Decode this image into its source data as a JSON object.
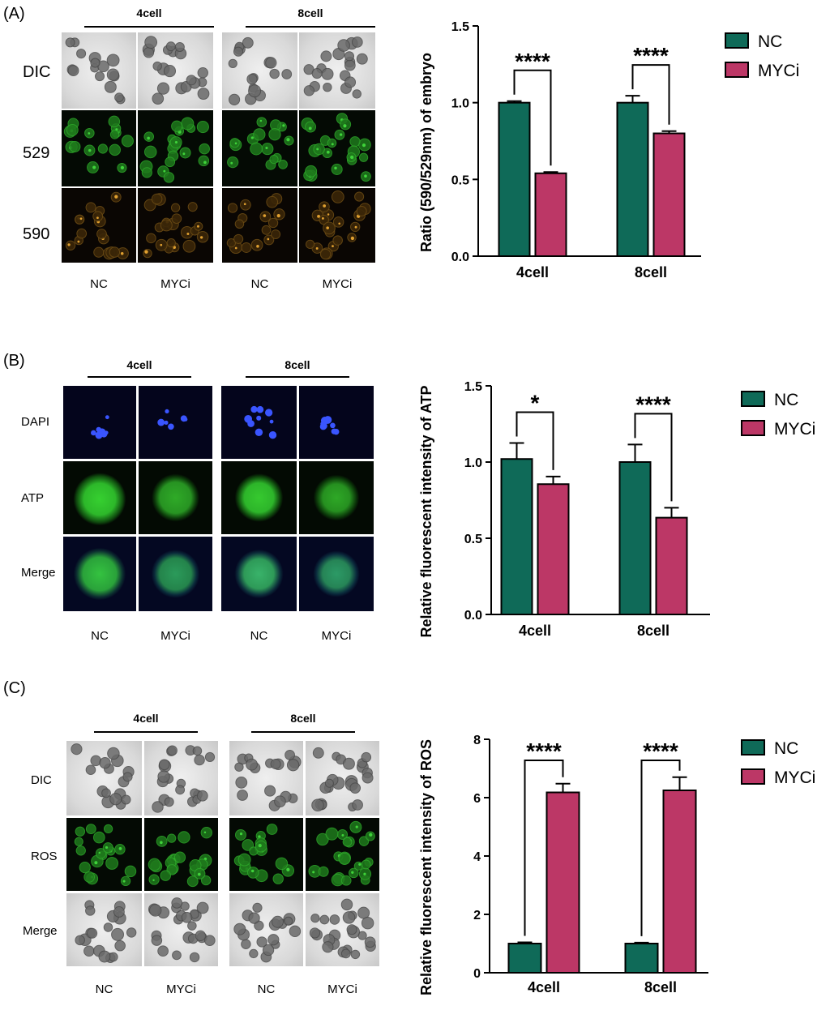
{
  "colors": {
    "nc": "#0f6a58",
    "myci": "#bc3766"
  },
  "panels": [
    {
      "label": "(A)",
      "groups": [
        "4cell",
        "8cell"
      ],
      "rows": [
        "DIC",
        "529",
        "590"
      ],
      "columns": [
        "NC",
        "MYCi",
        "NC",
        "MYCi"
      ]
    },
    {
      "label": "(B)",
      "groups": [
        "4cell",
        "8cell"
      ],
      "rows": [
        "DAPI",
        "ATP",
        "Merge"
      ],
      "columns": [
        "NC",
        "MYCi",
        "NC",
        "MYCi"
      ]
    },
    {
      "label": "(C)",
      "groups": [
        "4cell",
        "8cell"
      ],
      "rows": [
        "DIC",
        "ROS",
        "Merge"
      ],
      "columns": [
        "NC",
        "MYCi",
        "NC",
        "MYCi"
      ]
    }
  ],
  "chart_data": [
    {
      "type": "bar",
      "categories": [
        "4cell",
        "8cell"
      ],
      "series": [
        {
          "name": "NC",
          "values": [
            1.0,
            1.0
          ],
          "errors": [
            0.01,
            0.045
          ]
        },
        {
          "name": "MYCi",
          "values": [
            0.54,
            0.8
          ],
          "errors": [
            0.008,
            0.015
          ]
        }
      ],
      "ylabel": "Ratio (590/529nm) of embryo",
      "ylim": [
        0,
        1.5
      ],
      "yticks": [
        "0.0",
        "0.5",
        "1.0",
        "1.5"
      ],
      "significance": [
        "****",
        "****"
      ],
      "legend": "right"
    },
    {
      "type": "bar",
      "categories": [
        "4cell",
        "8cell"
      ],
      "series": [
        {
          "name": "NC",
          "values": [
            1.02,
            1.0
          ],
          "errors": [
            0.105,
            0.115
          ]
        },
        {
          "name": "MYCi",
          "values": [
            0.855,
            0.635
          ],
          "errors": [
            0.05,
            0.065
          ]
        }
      ],
      "ylabel": "Relative fluorescent intensity of ATP",
      "ylim": [
        0,
        1.5
      ],
      "yticks": [
        "0.0",
        "0.5",
        "1.0",
        "1.5"
      ],
      "significance": [
        "*",
        "****"
      ],
      "legend": "right"
    },
    {
      "type": "bar",
      "categories": [
        "4cell",
        "8cell"
      ],
      "series": [
        {
          "name": "NC",
          "values": [
            1.0,
            1.0
          ],
          "errors": [
            0.04,
            0.03
          ]
        },
        {
          "name": "MYCi",
          "values": [
            6.18,
            6.25
          ],
          "errors": [
            0.3,
            0.45
          ]
        }
      ],
      "ylabel": "Relative fluorescent intensity of ROS",
      "ylim": [
        0,
        8
      ],
      "yticks": [
        "0",
        "2",
        "4",
        "6",
        "8"
      ],
      "significance": [
        "****",
        "****"
      ],
      "legend": "right"
    }
  ]
}
